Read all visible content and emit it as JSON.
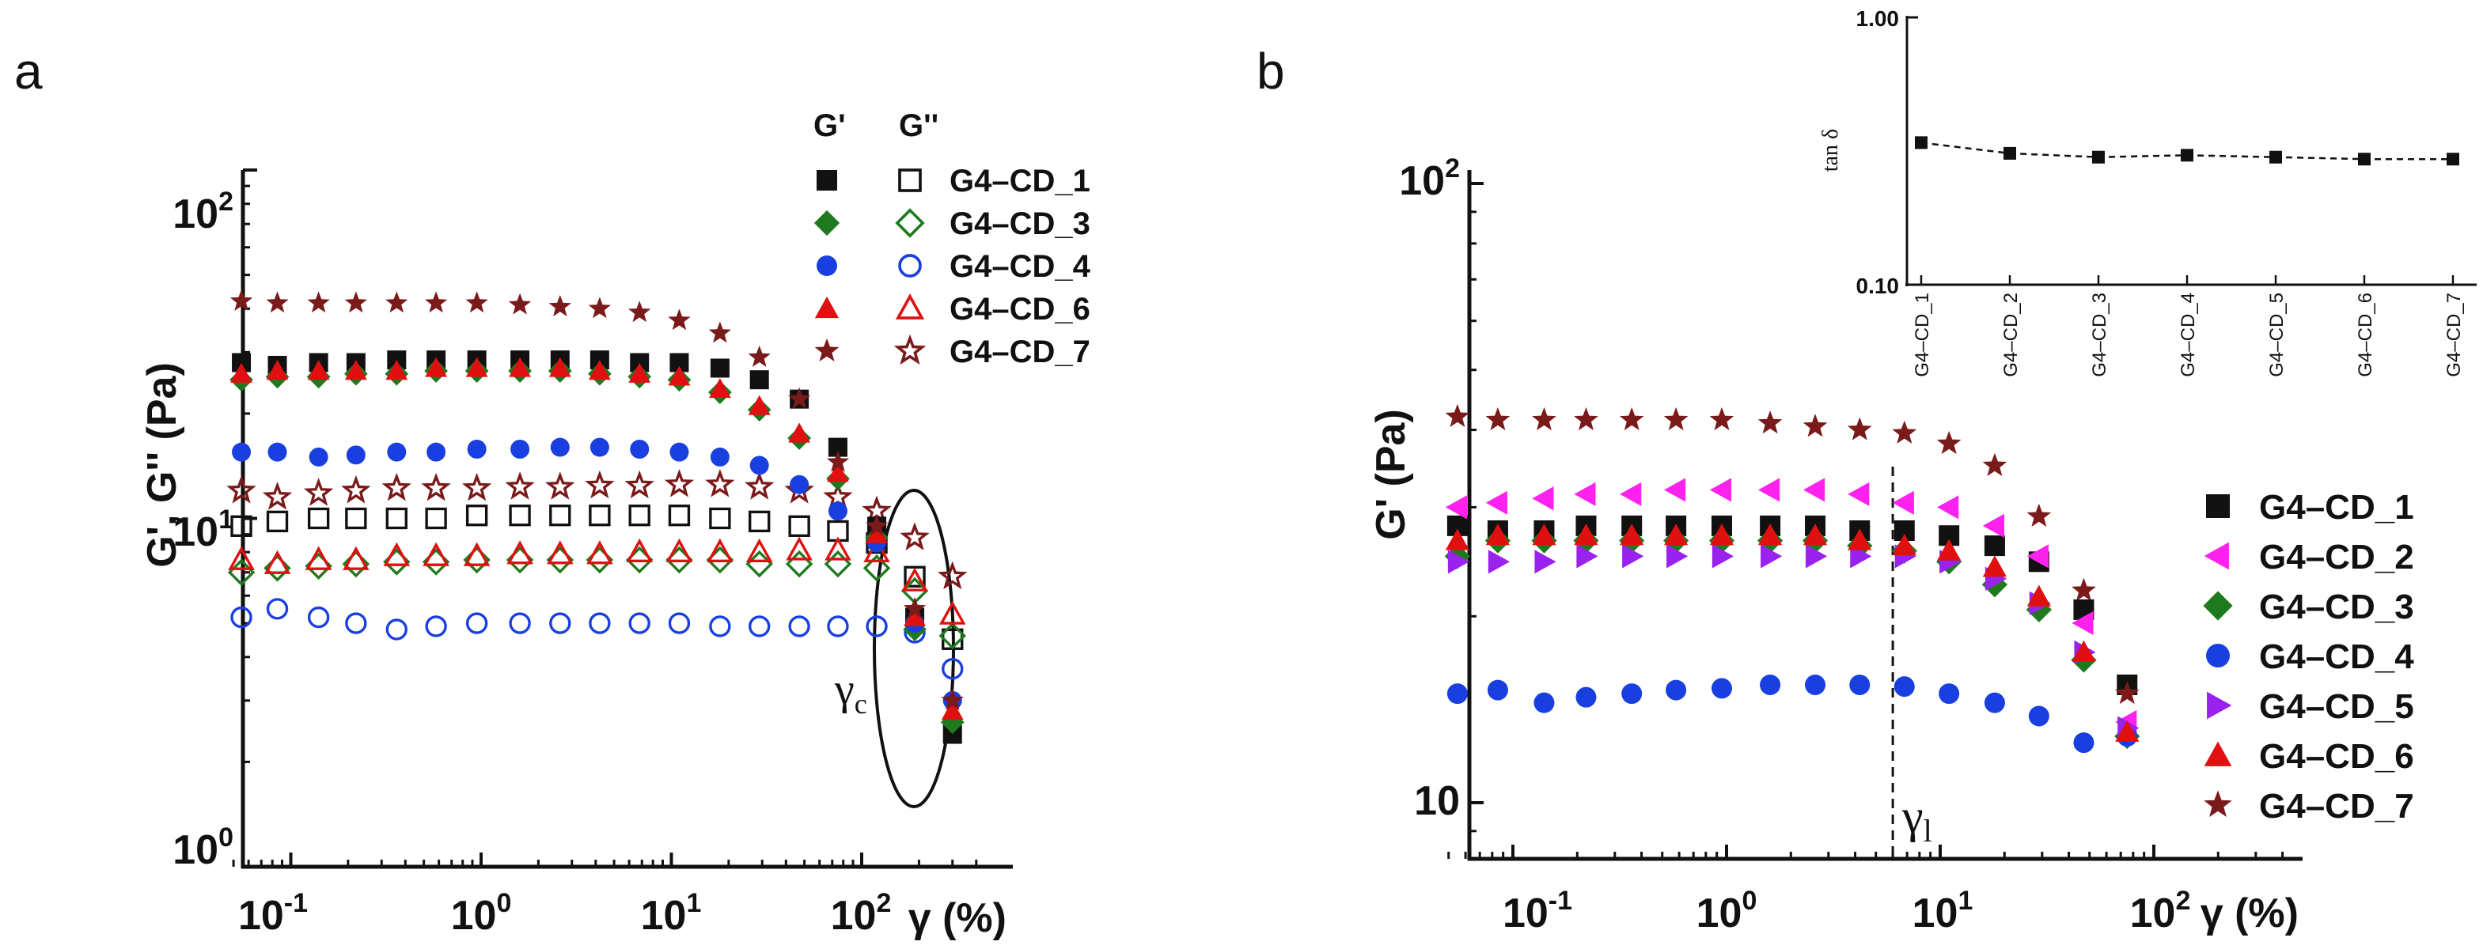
{
  "chart_data": [
    {
      "panel_label": "a",
      "type": "scatter",
      "xscale": "log",
      "yscale": "log",
      "xlim": [
        0.05,
        400
      ],
      "ylim": [
        1,
        100
      ],
      "xlabel": "γ (%)",
      "ylabel": "G', G'' (Pa)",
      "x_ticks": [
        {
          "base": "10",
          "exp": "-1"
        },
        {
          "base": "10",
          "exp": "0"
        },
        {
          "base": "10",
          "exp": "1"
        },
        {
          "base": "10",
          "exp": "2"
        }
      ],
      "y_ticks": [
        {
          "base": "10",
          "exp": "0"
        },
        {
          "base": "10",
          "exp": "1"
        },
        {
          "base": "10",
          "exp": "2"
        }
      ],
      "legend_headers": {
        "filled": "G'",
        "open": "G''"
      },
      "annotation": {
        "main": "γ",
        "sub": "c"
      },
      "x": [
        0.055,
        0.085,
        0.14,
        0.22,
        0.36,
        0.58,
        0.95,
        1.6,
        2.6,
        4.2,
        6.8,
        11,
        18,
        29,
        47,
        75,
        120,
        190,
        300
      ],
      "series": [
        {
          "name": "G4–CD_1",
          "color": "#111111",
          "marker": "square",
          "g1": [
            28,
            27.5,
            28,
            28,
            28.5,
            28.5,
            28.5,
            28.5,
            28.5,
            28.5,
            28,
            28,
            27,
            25,
            22,
            16,
            9.5,
            5.2,
            2.4
          ],
          "g2": [
            9.5,
            9.8,
            10,
            10,
            10,
            10,
            10.2,
            10.2,
            10.2,
            10.2,
            10.2,
            10.2,
            10,
            9.8,
            9.5,
            9.2,
            8.5,
            6.8,
            4.5
          ]
        },
        {
          "name": "G4–CD_3",
          "color": "#1f7a1f",
          "marker": "diamond",
          "g1": [
            25,
            25.5,
            25.5,
            26,
            26,
            26.5,
            26.5,
            26.5,
            26.5,
            26,
            25.5,
            25,
            23,
            20.5,
            17,
            13,
            8.8,
            4.8,
            2.6
          ],
          "g2": [
            7,
            7.2,
            7.3,
            7.4,
            7.5,
            7.5,
            7.6,
            7.6,
            7.6,
            7.6,
            7.6,
            7.6,
            7.6,
            7.4,
            7.4,
            7.4,
            7.2,
            6.2,
            4.6
          ]
        },
        {
          "name": "G4–CD_4",
          "color": "#1a3fe0",
          "marker": "circle",
          "g1": [
            15.5,
            15.5,
            15,
            15.2,
            15.5,
            15.5,
            15.8,
            15.8,
            16,
            16,
            15.8,
            15.5,
            15,
            14.2,
            12.5,
            10.5,
            8.5,
            5,
            3
          ],
          "g2": [
            5.2,
            5.5,
            5.2,
            5,
            4.8,
            4.9,
            5,
            5,
            5,
            5,
            5,
            5,
            4.9,
            4.9,
            4.9,
            4.9,
            4.9,
            4.7,
            3.7
          ]
        },
        {
          "name": "G4–CD_6",
          "color": "#e01010",
          "marker": "triangle",
          "g1": [
            26,
            26.5,
            26.5,
            26.5,
            26.5,
            27,
            27,
            27,
            27,
            26.5,
            26,
            25.5,
            23.5,
            21,
            17.5,
            13.5,
            9,
            5.2,
            2.8
          ],
          "g2": [
            7.6,
            7.4,
            7.6,
            7.6,
            7.8,
            7.8,
            7.8,
            7.9,
            7.9,
            7.9,
            8,
            8,
            8,
            8,
            8.1,
            8.1,
            8,
            6.6,
            5.3
          ]
        },
        {
          "name": "G4–CD_7",
          "color": "#7a1a1a",
          "marker": "star",
          "g1": [
            42,
            41.5,
            41.5,
            41.5,
            41.5,
            41.5,
            41.5,
            41,
            40.5,
            40,
            39,
            37,
            34,
            29,
            22,
            14.5,
            9.5,
            5.5,
            3
          ],
          "g2": [
            12,
            11.5,
            11.8,
            12,
            12.2,
            12.2,
            12.2,
            12.3,
            12.3,
            12.4,
            12.4,
            12.5,
            12.5,
            12.3,
            12,
            11.5,
            10.5,
            8.8,
            6.8
          ]
        }
      ]
    },
    {
      "panel_label": "b",
      "type": "scatter",
      "xscale": "log",
      "yscale": "log",
      "xlim": [
        0.05,
        400
      ],
      "ylim": [
        8,
        100
      ],
      "xlabel": "γ (%)",
      "ylabel": "G' (Pa)",
      "x_ticks": [
        {
          "base": "10",
          "exp": "-1"
        },
        {
          "base": "10",
          "exp": "0"
        },
        {
          "base": "10",
          "exp": "1"
        },
        {
          "base": "10",
          "exp": "2"
        }
      ],
      "y_ticks": [
        {
          "base": "10",
          "exp": ""
        },
        {
          "base": "10",
          "exp": "2"
        }
      ],
      "annotation": {
        "main": "γ",
        "sub": "l",
        "x": 6
      },
      "x": [
        0.055,
        0.085,
        0.14,
        0.22,
        0.36,
        0.58,
        0.95,
        1.6,
        2.6,
        4.2,
        6.8,
        11,
        18,
        29,
        47,
        75
      ],
      "series": [
        {
          "name": "G4–CD_1",
          "color": "#111111",
          "marker": "square",
          "values": [
            28,
            27.5,
            27.5,
            28,
            28,
            28,
            28,
            28,
            28,
            27.5,
            27.5,
            27,
            26,
            24.5,
            20.5,
            15.5
          ]
        },
        {
          "name": "G4–CD_2",
          "color": "#ff22ee",
          "marker": "triangle-left",
          "values": [
            30,
            30.5,
            31,
            31.5,
            31.5,
            32,
            32,
            32,
            32,
            31.5,
            30.5,
            30,
            28,
            25,
            19.5,
            13.5
          ]
        },
        {
          "name": "G4–CD_3",
          "color": "#1f7a1f",
          "marker": "diamond",
          "values": [
            25,
            26.5,
            26.5,
            26.5,
            26.5,
            26.5,
            26.5,
            26.5,
            26.5,
            26,
            25.5,
            24.5,
            22.5,
            20.5,
            17,
            12.8
          ]
        },
        {
          "name": "G4–CD_4",
          "color": "#1a3fe0",
          "marker": "circle",
          "values": [
            15,
            15.2,
            14.5,
            14.8,
            15,
            15.2,
            15.3,
            15.5,
            15.5,
            15.5,
            15.4,
            15,
            14.5,
            13.8,
            12.5,
            12.8
          ]
        },
        {
          "name": "G4–CD_5",
          "color": "#9a22ee",
          "marker": "triangle-right",
          "values": [
            24.5,
            24.5,
            24.5,
            25,
            25,
            25,
            25,
            25,
            25,
            25,
            25,
            24.5,
            23,
            21,
            17.5,
            13.2
          ]
        },
        {
          "name": "G4–CD_6",
          "color": "#e01010",
          "marker": "triangle",
          "values": [
            26.5,
            27,
            27,
            27,
            27,
            27,
            27,
            27,
            27,
            26.5,
            26,
            25.5,
            24,
            21.5,
            17.5,
            13
          ]
        },
        {
          "name": "G4–CD_7",
          "color": "#7a1a1a",
          "marker": "star",
          "values": [
            42,
            41.5,
            41.5,
            41.5,
            41.5,
            41.5,
            41.5,
            41,
            40.5,
            40,
            39.5,
            38,
            35,
            29,
            22,
            15
          ]
        }
      ],
      "inset": {
        "type": "line",
        "ylabel": "tan δ",
        "yscale": "log",
        "ylim": [
          0.1,
          1
        ],
        "y_ticks": [
          "1.00",
          "0.10"
        ],
        "categories": [
          "G4–CD_1",
          "G4–CD_2",
          "G4–CD_3",
          "G4–CD_4",
          "G4–CD_5",
          "G4–CD_6",
          "G4–CD_7"
        ],
        "values": [
          0.34,
          0.31,
          0.3,
          0.305,
          0.3,
          0.295,
          0.295
        ],
        "color": "#111111",
        "marker": "square"
      }
    }
  ]
}
